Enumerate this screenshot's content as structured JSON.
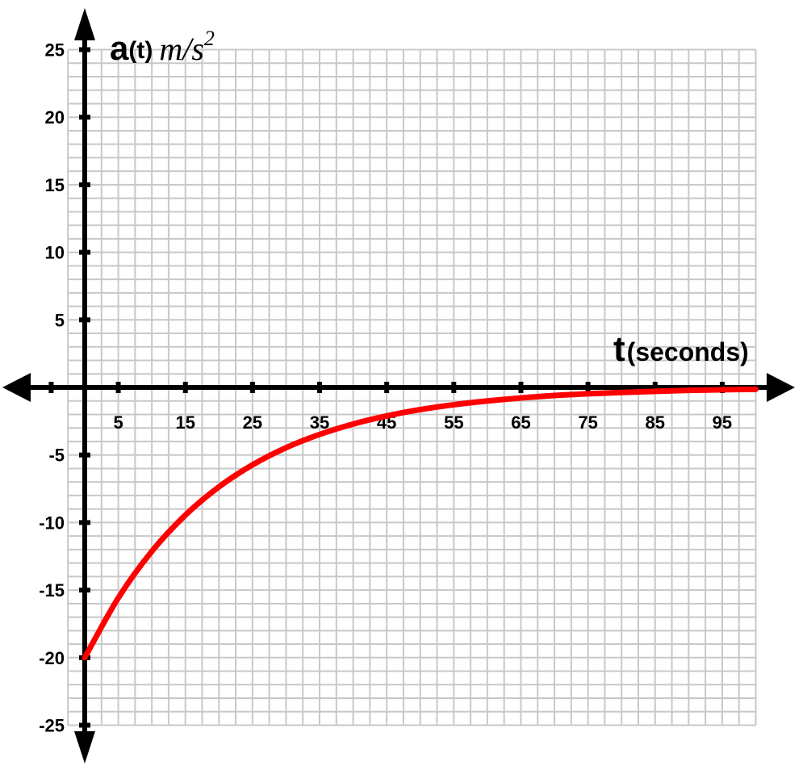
{
  "chart_data": {
    "type": "line",
    "ylabel": {
      "symbol": "a",
      "arg": "(t)",
      "unit": "m/s",
      "unit_exp": "2"
    },
    "xlabel": {
      "symbol": "t",
      "unit": "(seconds)"
    },
    "xlim": [
      -2.5,
      100
    ],
    "ylim": [
      -25,
      25
    ],
    "x_ticks": [
      5,
      15,
      25,
      35,
      45,
      55,
      65,
      75,
      85,
      95
    ],
    "x_tick_labels": [
      "5",
      "15",
      "25",
      "35",
      "45",
      "55",
      "65",
      "75",
      "85",
      "95"
    ],
    "y_ticks": [
      25,
      20,
      15,
      10,
      5,
      -5,
      -10,
      -15,
      -20,
      -25
    ],
    "y_tick_labels": [
      "25",
      "20",
      "15",
      "10",
      "5",
      "-5",
      "-10",
      "-15",
      "-20",
      "-25"
    ],
    "grid": true,
    "series": [
      {
        "color": "#ff0000",
        "x": [
          0,
          5,
          10,
          15,
          20,
          25,
          30,
          35,
          40,
          45,
          50,
          55,
          60,
          65,
          70,
          75,
          80,
          85,
          90,
          95,
          100
        ],
        "y": [
          -20,
          -15.58,
          -12.13,
          -9.45,
          -7.36,
          -5.73,
          -4.46,
          -3.48,
          -2.71,
          -2.11,
          -1.64,
          -1.28,
          -1.0,
          -0.78,
          -0.6,
          -0.47,
          -0.37,
          -0.29,
          -0.22,
          -0.17,
          -0.14
        ]
      }
    ],
    "colors": {
      "axis": "#000000",
      "grid": "#c8c8c8",
      "curve": "#ff0000"
    }
  }
}
